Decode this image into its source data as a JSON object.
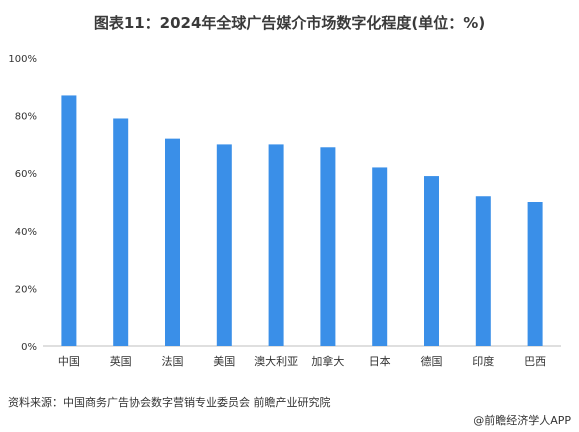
{
  "title": "图表11：2024年全球广告媒介市场数字化程度(单位：%)",
  "source": "资料来源：中国商务广告协会数字营销专业委员会 前瞻产业研究院",
  "credit": "@前瞻经济学人APP",
  "colors": {
    "bar": "#3a8fe8",
    "axis": "#bfbfbf"
  },
  "chart_data": {
    "type": "bar",
    "title": "图表11：2024年全球广告媒介市场数字化程度(单位：%)",
    "categories": [
      "中国",
      "英国",
      "法国",
      "美国",
      "澳大利亚",
      "加拿大",
      "日本",
      "德国",
      "印度",
      "巴西"
    ],
    "values": [
      87,
      79,
      72,
      70,
      70,
      69,
      62,
      59,
      52,
      50
    ],
    "ylim": [
      0,
      100
    ],
    "yticks": [
      "0%",
      "20%",
      "40%",
      "60%",
      "80%",
      "100%"
    ],
    "ytick_values": [
      0,
      20,
      40,
      60,
      80,
      100
    ],
    "grid": false,
    "legend": "none"
  }
}
